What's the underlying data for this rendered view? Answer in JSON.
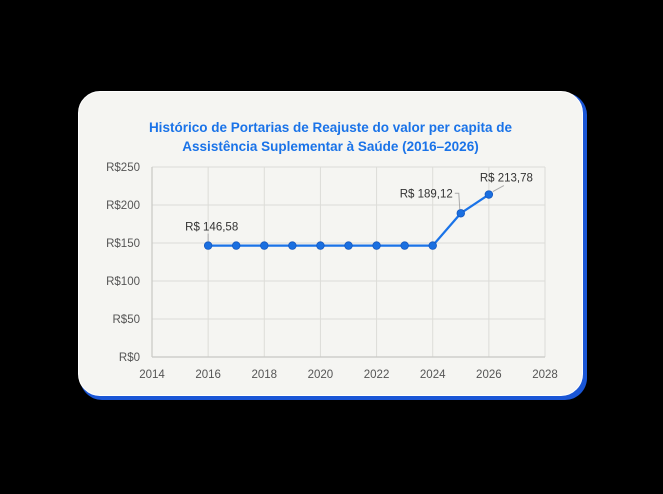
{
  "chart": {
    "title_line1": "Histórico de Portarias de Reajuste do valor per capita de",
    "title_line2": "Assistência Suplementar à Saúde (2016–2026)",
    "accent_color": "#1a73e8",
    "border_color": "#1a56d6"
  },
  "chart_data": {
    "type": "line",
    "title": "Histórico de Portarias de Reajuste do valor per capita de Assistência Suplementar à Saúde (2016–2026)",
    "xlabel": "",
    "ylabel": "",
    "x": [
      2016,
      2017,
      2018,
      2019,
      2020,
      2021,
      2022,
      2023,
      2024,
      2025,
      2026
    ],
    "series": [
      {
        "name": "Valor per capita",
        "values": [
          146.58,
          146.58,
          146.58,
          146.58,
          146.58,
          146.58,
          146.58,
          146.58,
          146.58,
          189.12,
          213.78
        ]
      }
    ],
    "xlim": [
      2014,
      2028
    ],
    "ylim": [
      0,
      250
    ],
    "x_ticks": [
      "2014",
      "2016",
      "2018",
      "2020",
      "2022",
      "2024",
      "2026",
      "2028"
    ],
    "y_ticks": [
      "R$0",
      "R$50",
      "R$100",
      "R$150",
      "R$200",
      "R$250"
    ],
    "annotations": [
      {
        "x": 2016,
        "y": 146.58,
        "text": "R$ 146,58"
      },
      {
        "x": 2025,
        "y": 189.12,
        "text": "R$ 189,12"
      },
      {
        "x": 2026,
        "y": 213.78,
        "text": "R$ 213,78"
      }
    ],
    "grid": true,
    "legend": "none"
  }
}
